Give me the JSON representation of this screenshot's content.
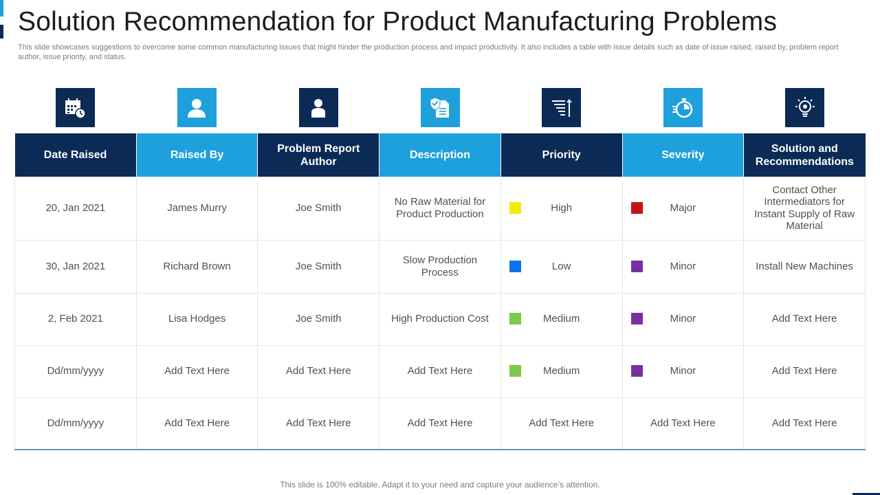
{
  "title": "Solution Recommendation for Product Manufacturing Problems",
  "subtitle": "This slide showcases suggestions to overcome some common manufacturing issues that might hinder the production process and impact productivity. It also includes a table with issue details such as date of issue raised, raised by, problem report author, issue priority, and status.",
  "icons": [
    "calendar-clock-icon",
    "user-icon",
    "user-profile-icon",
    "shield-document-icon",
    "sort-priority-icon",
    "stopwatch-icon",
    "lightbulb-gear-icon"
  ],
  "colors": {
    "dark": "#0b2a56",
    "light": "#1ea0dc",
    "yellow": "#f2ee00",
    "blue": "#0c73e8",
    "green": "#7cc94b",
    "red": "#c0141b",
    "purple": "#7a2ea6"
  },
  "table": {
    "headers": [
      "Date Raised",
      "Raised By",
      "Problem Report Author",
      "Description",
      "Priority",
      "Severity",
      "Solution and Recommendations"
    ],
    "rows": [
      [
        "20, Jan 2021",
        "James Murry",
        "Joe Smith",
        "No Raw Material for Product Production",
        "High",
        "Major",
        "Contact Other Intermediators for Instant Supply of Raw Material"
      ],
      [
        "30, Jan 2021",
        "Richard Brown",
        "Joe Smith",
        "Slow Production Process",
        "Low",
        "Minor",
        "Install New Machines"
      ],
      [
        "2, Feb 2021",
        "Lisa Hodges",
        "Joe Smith",
        "High Production Cost",
        "Medium",
        "Minor",
        "Add Text Here"
      ],
      [
        "Dd/mm/yyyy",
        "Add Text Here",
        "Add Text Here",
        "Add Text Here",
        "Medium",
        "Minor",
        "Add Text Here"
      ],
      [
        "Dd/mm/yyyy",
        "Add Text Here",
        "Add Text Here",
        "Add Text Here",
        "Add Text Here",
        "Add Text Here",
        "Add Text Here"
      ]
    ]
  },
  "footer": "This slide is 100% editable. Adapt it to your need and capture your audience’s attention."
}
